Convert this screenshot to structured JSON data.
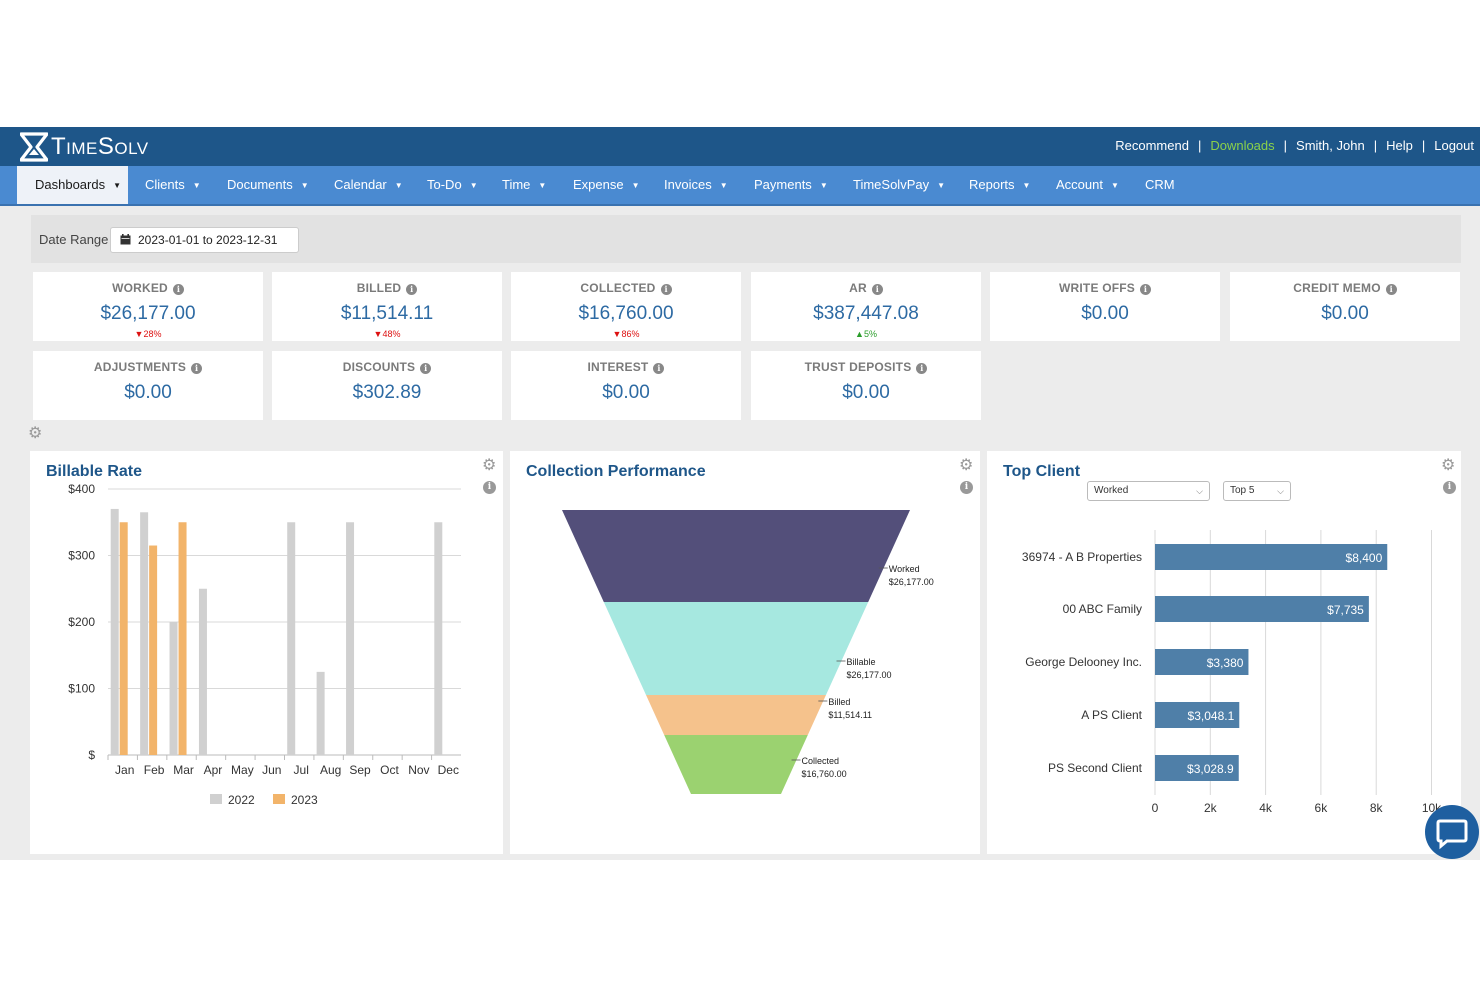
{
  "app": {
    "name": "TimeSolv"
  },
  "toplinks": [
    {
      "label": "Recommend",
      "hl": false
    },
    {
      "label": "Downloads",
      "hl": true
    },
    {
      "label": "Smith, John",
      "hl": false
    },
    {
      "label": "Help",
      "hl": false
    },
    {
      "label": "Logout",
      "hl": false
    }
  ],
  "nav": [
    {
      "label": "Dashboards",
      "caret": true,
      "active": true
    },
    {
      "label": "Clients",
      "caret": true
    },
    {
      "label": "Documents",
      "caret": true
    },
    {
      "label": "Calendar",
      "caret": true
    },
    {
      "label": "To-Do",
      "caret": true
    },
    {
      "label": "Time",
      "caret": true
    },
    {
      "label": "Expense",
      "caret": true
    },
    {
      "label": "Invoices",
      "caret": true
    },
    {
      "label": "Payments",
      "caret": true
    },
    {
      "label": "TimeSolvPay",
      "caret": true
    },
    {
      "label": "Reports",
      "caret": true
    },
    {
      "label": "Account",
      "caret": true
    },
    {
      "label": "CRM",
      "caret": false
    }
  ],
  "filter": {
    "label": "Date Range",
    "value": "2023-01-01 to 2023-12-31"
  },
  "stats": [
    {
      "label": "WORKED",
      "value": "$26,177.00",
      "change": "28%",
      "dir": "down"
    },
    {
      "label": "BILLED",
      "value": "$11,514.11",
      "change": "48%",
      "dir": "down"
    },
    {
      "label": "COLLECTED",
      "value": "$16,760.00",
      "change": "86%",
      "dir": "down"
    },
    {
      "label": "AR",
      "value": "$387,447.08",
      "change": "5%",
      "dir": "up"
    },
    {
      "label": "WRITE OFFS",
      "value": "$0.00",
      "change": "",
      "dir": ""
    },
    {
      "label": "CREDIT MEMO",
      "value": "$0.00",
      "change": "",
      "dir": ""
    },
    {
      "label": "ADJUSTMENTS",
      "value": "$0.00",
      "change": "",
      "dir": ""
    },
    {
      "label": "DISCOUNTS",
      "value": "$302.89",
      "change": "",
      "dir": ""
    },
    {
      "label": "INTEREST",
      "value": "$0.00",
      "change": "",
      "dir": ""
    },
    {
      "label": "TRUST DEPOSITS",
      "value": "$0.00",
      "change": "",
      "dir": ""
    }
  ],
  "panels": {
    "billable": {
      "title": "Billable Rate"
    },
    "collection": {
      "title": "Collection Performance"
    },
    "top": {
      "title": "Top Client",
      "metric_select": "Worked",
      "count_select": "Top 5"
    }
  },
  "colors": {
    "header": "#1e5689",
    "nav": "#4a8ad1",
    "bar2022": "#d0d0d0",
    "bar2023": "#f2b46a",
    "funnel": [
      "#534f7a",
      "#a6e8e0",
      "#f5c28c",
      "#9bd270"
    ],
    "topbar": "#4f7fa8"
  },
  "chart_data": [
    {
      "type": "bar",
      "title": "Billable Rate",
      "categories": [
        "Jan",
        "Feb",
        "Mar",
        "Apr",
        "May",
        "Jun",
        "Jul",
        "Aug",
        "Sep",
        "Oct",
        "Nov",
        "Dec"
      ],
      "series": [
        {
          "name": "2022",
          "values": [
            370,
            365,
            200,
            250,
            0,
            0,
            350,
            125,
            350,
            0,
            0,
            350
          ]
        },
        {
          "name": "2023",
          "values": [
            350,
            315,
            350,
            0,
            0,
            0,
            0,
            0,
            0,
            0,
            0,
            0
          ]
        }
      ],
      "yticks": [
        "$",
        "$100",
        "$200",
        "$300",
        "$400"
      ],
      "ylim": [
        0,
        400
      ],
      "grid": true,
      "legend": "bottom"
    },
    {
      "type": "funnel",
      "title": "Collection Performance",
      "stages": [
        {
          "name": "Worked",
          "label": "$26,177.00"
        },
        {
          "name": "Billable",
          "label": "$26,177.00"
        },
        {
          "name": "Billed",
          "label": "$11,514.11"
        },
        {
          "name": "Collected",
          "label": "$16,760.00"
        }
      ]
    },
    {
      "type": "bar",
      "orientation": "horizontal",
      "title": "Top Client",
      "categories": [
        "36974 - A B Properties",
        "00 ABC Family",
        "George Delooney Inc.",
        "A PS Client",
        "PS Second Client"
      ],
      "values": [
        8400,
        7735,
        3380,
        3048.1,
        3028.9
      ],
      "labels": [
        "$8,400",
        "$7,735",
        "$3,380",
        "$3,048.1",
        "$3,028.9"
      ],
      "xticks": [
        "0",
        "2k",
        "4k",
        "6k",
        "8k",
        "10k"
      ],
      "xlim": [
        0,
        10000
      ],
      "grid": true
    }
  ]
}
